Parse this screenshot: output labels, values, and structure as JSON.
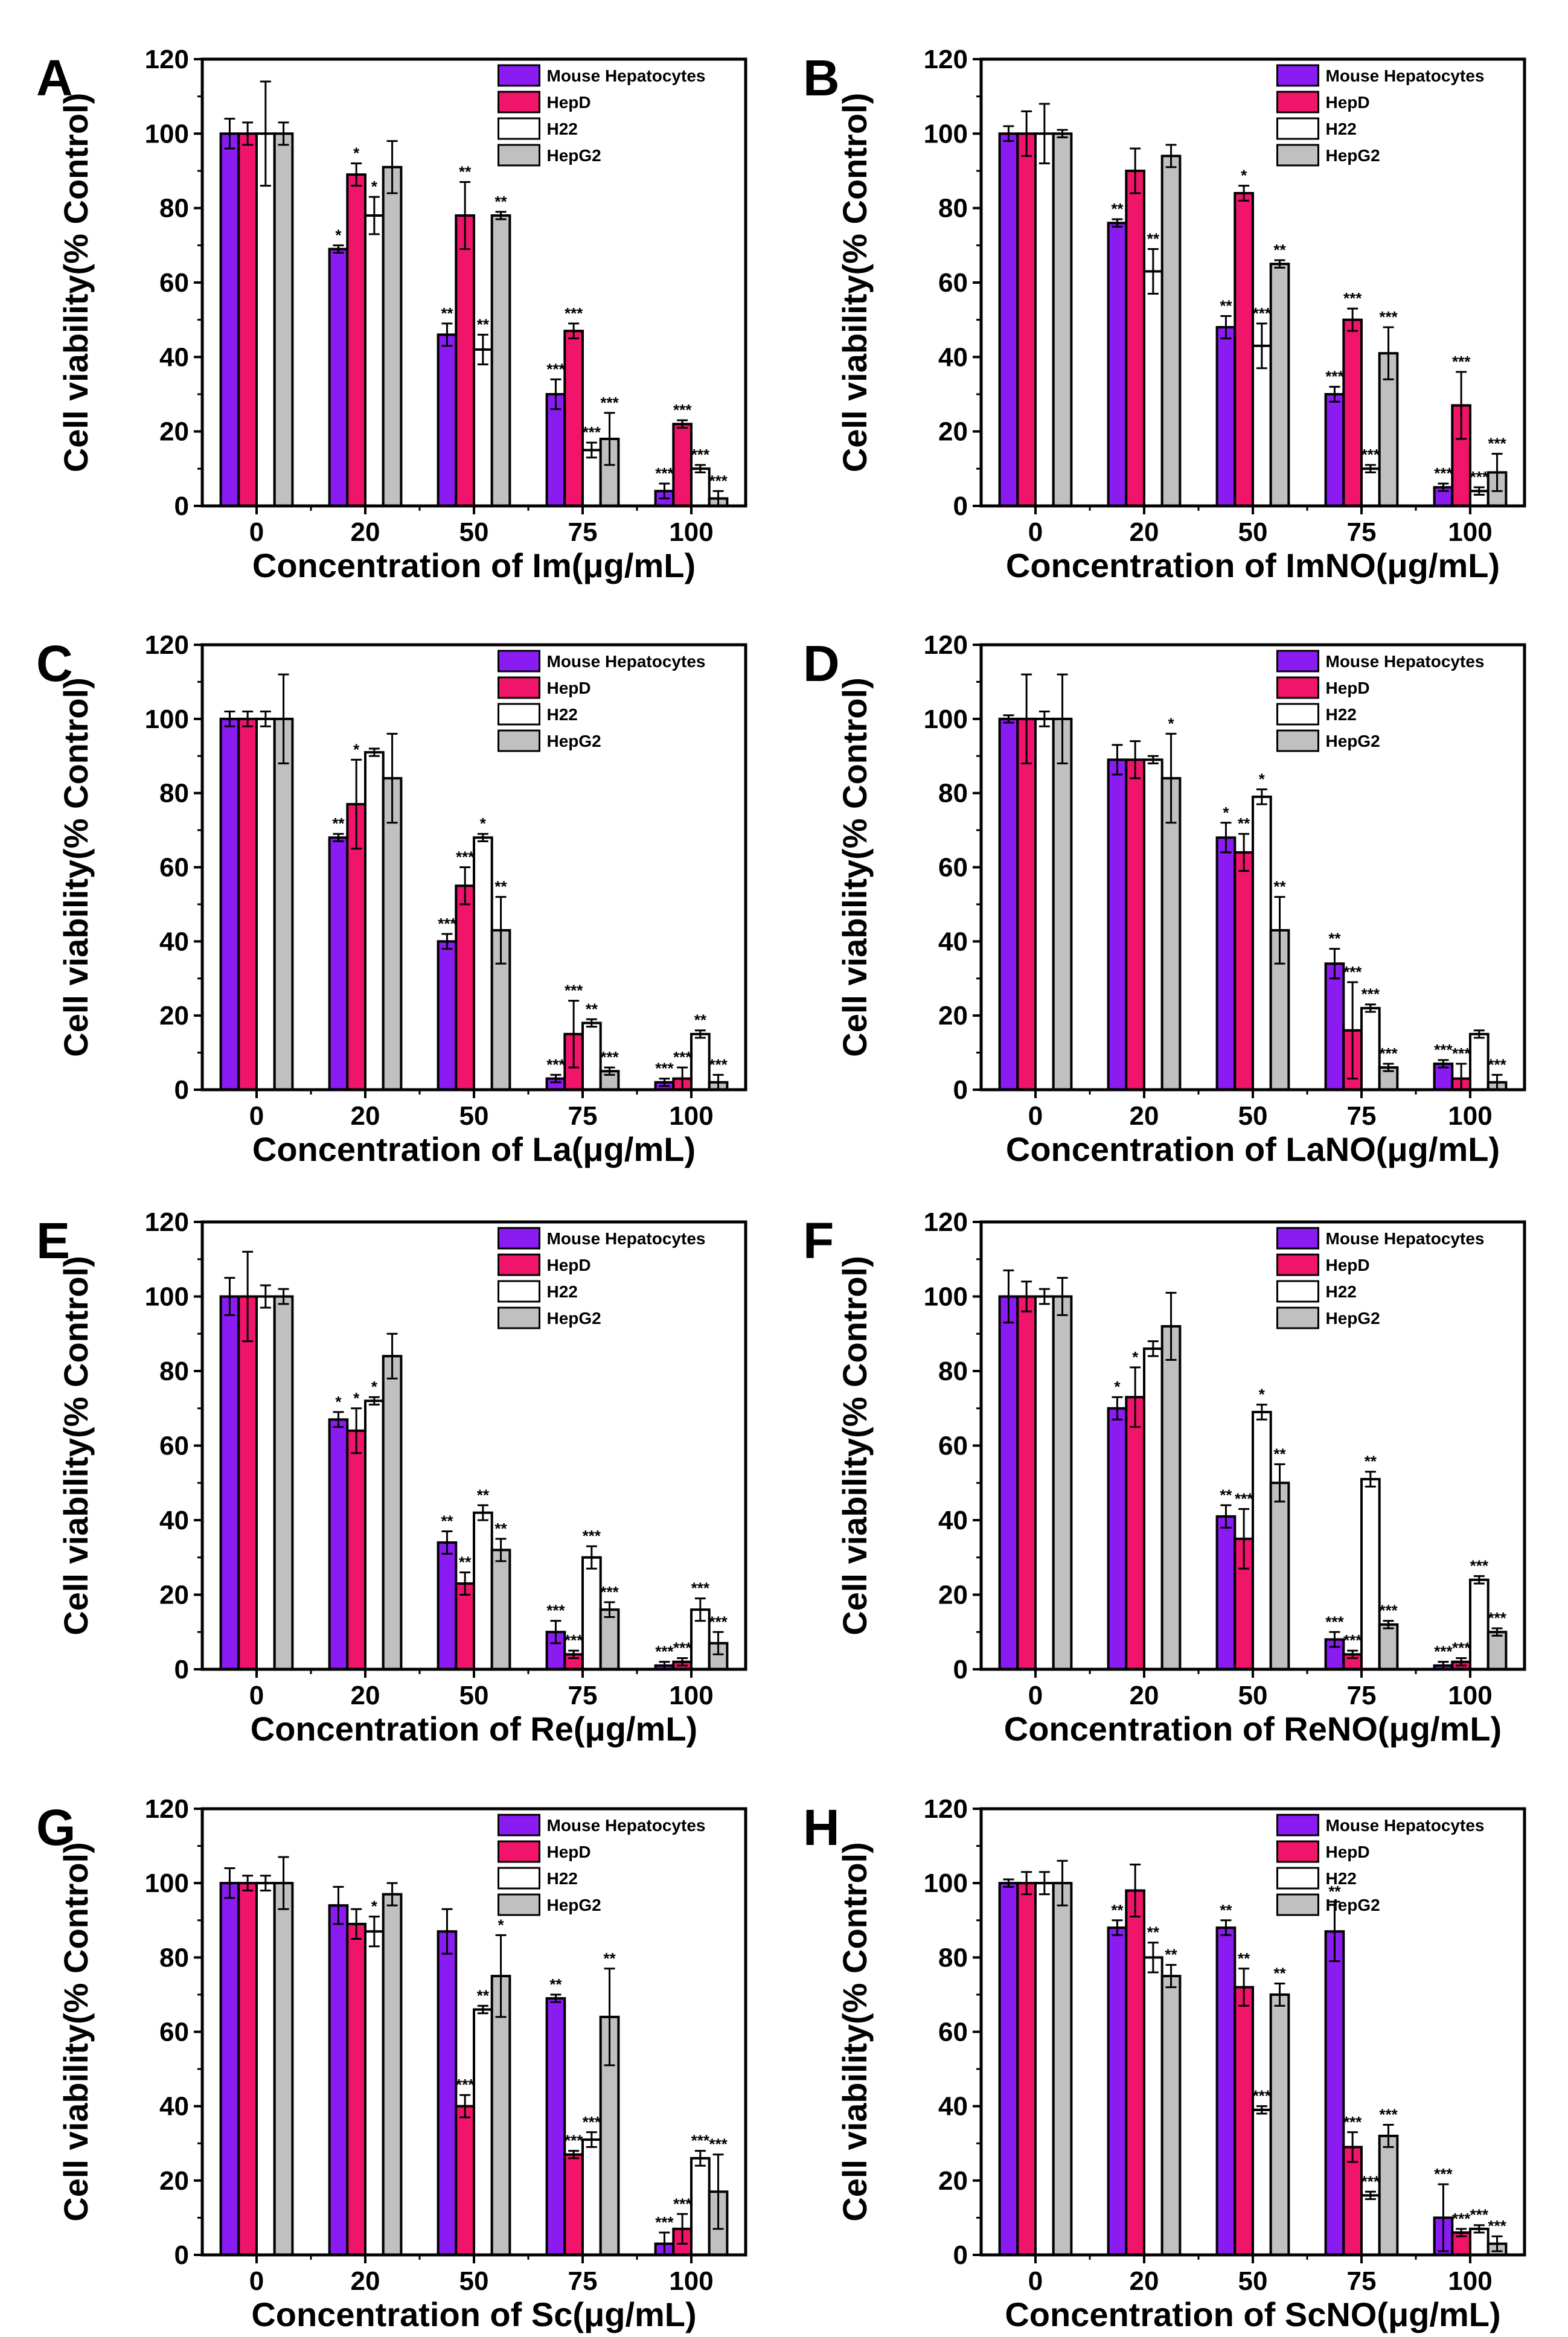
{
  "colors": {
    "Mouse Hepatocytes": "#8a1cf2",
    "HepD": "#f0156b",
    "H22": "#ffffff",
    "HepG2": "#c0c0c0"
  },
  "chart_data": [
    {
      "type": "bar",
      "panel": "A",
      "xlabel": "Concentration of Im(μg/mL)",
      "ylabel": "Cell  viability(% Control)",
      "ylim": [
        0,
        120
      ],
      "yticks": [
        0,
        20,
        40,
        60,
        80,
        100,
        120
      ],
      "legend": "top-right",
      "categories": [
        "0",
        "20",
        "50",
        "75",
        "100"
      ],
      "series": [
        {
          "name": "Mouse Hepatocytes",
          "values": [
            100,
            69,
            46,
            30,
            4
          ],
          "errors": [
            4,
            1,
            3,
            4,
            2
          ],
          "sig": [
            "",
            "*",
            "**",
            "***",
            "***"
          ]
        },
        {
          "name": "HepD",
          "values": [
            100,
            89,
            78,
            47,
            22
          ],
          "errors": [
            3,
            3,
            9,
            2,
            1
          ],
          "sig": [
            "",
            "*",
            "**",
            "***",
            "***"
          ]
        },
        {
          "name": "H22",
          "values": [
            100,
            78,
            42,
            15,
            10
          ],
          "errors": [
            14,
            5,
            4,
            2,
            1
          ],
          "sig": [
            "",
            "*",
            "**",
            "***",
            "***"
          ]
        },
        {
          "name": "HepG2",
          "values": [
            100,
            91,
            78,
            18,
            2
          ],
          "errors": [
            3,
            7,
            1,
            7,
            2
          ],
          "sig": [
            "",
            "",
            "**",
            "***",
            "***"
          ]
        }
      ]
    },
    {
      "type": "bar",
      "panel": "B",
      "xlabel": "Concentration of ImNO(μg/mL)",
      "ylabel": "Cell  viability(% Control)",
      "ylim": [
        0,
        120
      ],
      "yticks": [
        0,
        20,
        40,
        60,
        80,
        100,
        120
      ],
      "legend": "top-right",
      "categories": [
        "0",
        "20",
        "50",
        "75",
        "100"
      ],
      "series": [
        {
          "name": "Mouse Hepatocytes",
          "values": [
            100,
            76,
            48,
            30,
            5
          ],
          "errors": [
            2,
            1,
            3,
            2,
            1
          ],
          "sig": [
            "",
            "**",
            "**",
            "***",
            "***"
          ]
        },
        {
          "name": "HepD",
          "values": [
            100,
            90,
            84,
            50,
            27
          ],
          "errors": [
            6,
            6,
            2,
            3,
            9
          ],
          "sig": [
            "",
            "",
            "*",
            "***",
            "***"
          ]
        },
        {
          "name": "H22",
          "values": [
            100,
            63,
            43,
            10,
            4
          ],
          "errors": [
            8,
            6,
            6,
            1,
            1
          ],
          "sig": [
            "",
            "**",
            "***",
            "***",
            "***"
          ]
        },
        {
          "name": "HepG2",
          "values": [
            100,
            94,
            65,
            41,
            9
          ],
          "errors": [
            1,
            3,
            1,
            7,
            5
          ],
          "sig": [
            "",
            "",
            "**",
            "***",
            "***"
          ]
        }
      ]
    },
    {
      "type": "bar",
      "panel": "C",
      "xlabel": "Concentration of La(μg/mL)",
      "ylabel": "Cell  viability(% Control)",
      "ylim": [
        0,
        120
      ],
      "yticks": [
        0,
        20,
        40,
        60,
        80,
        100,
        120
      ],
      "legend": "top-right",
      "categories": [
        "0",
        "20",
        "50",
        "75",
        "100"
      ],
      "series": [
        {
          "name": "Mouse Hepatocytes",
          "values": [
            100,
            68,
            40,
            3,
            2
          ],
          "errors": [
            2,
            1,
            2,
            1,
            1
          ],
          "sig": [
            "",
            "**",
            "***",
            "***",
            "***"
          ]
        },
        {
          "name": "HepD",
          "values": [
            100,
            77,
            55,
            15,
            3
          ],
          "errors": [
            2,
            12,
            5,
            9,
            3
          ],
          "sig": [
            "",
            "*",
            "***",
            "***",
            "***"
          ]
        },
        {
          "name": "H22",
          "values": [
            100,
            91,
            68,
            18,
            15
          ],
          "errors": [
            2,
            1,
            1,
            1,
            1
          ],
          "sig": [
            "",
            "",
            "*",
            "**",
            "**"
          ]
        },
        {
          "name": "HepG2",
          "values": [
            100,
            84,
            43,
            5,
            2
          ],
          "errors": [
            12,
            12,
            9,
            1,
            2
          ],
          "sig": [
            "",
            "",
            "**",
            "***",
            "***"
          ]
        }
      ]
    },
    {
      "type": "bar",
      "panel": "D",
      "xlabel": "Concentration of LaNO(μg/mL)",
      "ylabel": "Cell  viability(% Control)",
      "ylim": [
        0,
        120
      ],
      "yticks": [
        0,
        20,
        40,
        60,
        80,
        100,
        120
      ],
      "legend": "top-right",
      "categories": [
        "0",
        "20",
        "50",
        "75",
        "100"
      ],
      "series": [
        {
          "name": "Mouse Hepatocytes",
          "values": [
            100,
            89,
            68,
            34,
            7
          ],
          "errors": [
            1,
            4,
            4,
            4,
            1
          ],
          "sig": [
            "",
            "",
            "*",
            "**",
            "***"
          ]
        },
        {
          "name": "HepD",
          "values": [
            100,
            89,
            64,
            16,
            3
          ],
          "errors": [
            12,
            5,
            5,
            13,
            4
          ],
          "sig": [
            "",
            "",
            "**",
            "***",
            "***"
          ]
        },
        {
          "name": "H22",
          "values": [
            100,
            89,
            79,
            22,
            15
          ],
          "errors": [
            2,
            1,
            2,
            1,
            1
          ],
          "sig": [
            "",
            "",
            "*",
            "***",
            ""
          ]
        },
        {
          "name": "HepG2",
          "values": [
            100,
            84,
            43,
            6,
            2
          ],
          "errors": [
            12,
            12,
            9,
            1,
            2
          ],
          "sig": [
            "",
            "*",
            "**",
            "***",
            "***"
          ]
        }
      ]
    },
    {
      "type": "bar",
      "panel": "E",
      "xlabel": "Concentration of Re(μg/mL)",
      "ylabel": "Cell  viability(% Control)",
      "ylim": [
        0,
        120
      ],
      "yticks": [
        0,
        20,
        40,
        60,
        80,
        100,
        120
      ],
      "legend": "top-right",
      "categories": [
        "0",
        "20",
        "50",
        "75",
        "100"
      ],
      "series": [
        {
          "name": "Mouse Hepatocytes",
          "values": [
            100,
            67,
            34,
            10,
            1
          ],
          "errors": [
            5,
            2,
            3,
            3,
            1
          ],
          "sig": [
            "",
            "*",
            "**",
            "***",
            "***"
          ]
        },
        {
          "name": "HepD",
          "values": [
            100,
            64,
            23,
            4,
            2
          ],
          "errors": [
            12,
            6,
            3,
            1,
            1
          ],
          "sig": [
            "",
            "*",
            "**",
            "***",
            "***"
          ]
        },
        {
          "name": "H22",
          "values": [
            100,
            72,
            42,
            30,
            16
          ],
          "errors": [
            3,
            1,
            2,
            3,
            3
          ],
          "sig": [
            "",
            "*",
            "**",
            "***",
            "***"
          ]
        },
        {
          "name": "HepG2",
          "values": [
            100,
            84,
            32,
            16,
            7
          ],
          "errors": [
            2,
            6,
            3,
            2,
            3
          ],
          "sig": [
            "",
            "",
            "**",
            "***",
            "***"
          ]
        }
      ]
    },
    {
      "type": "bar",
      "panel": "F",
      "xlabel": "Concentration of ReNO(μg/mL)",
      "ylabel": "Cell  viability(% Control)",
      "ylim": [
        0,
        120
      ],
      "yticks": [
        0,
        20,
        40,
        60,
        80,
        100,
        120
      ],
      "legend": "top-right",
      "categories": [
        "0",
        "20",
        "50",
        "75",
        "100"
      ],
      "series": [
        {
          "name": "Mouse Hepatocytes",
          "values": [
            100,
            70,
            41,
            8,
            1
          ],
          "errors": [
            7,
            3,
            3,
            2,
            1
          ],
          "sig": [
            "",
            "*",
            "**",
            "***",
            "***"
          ]
        },
        {
          "name": "HepD",
          "values": [
            100,
            73,
            35,
            4,
            2
          ],
          "errors": [
            4,
            8,
            8,
            1,
            1
          ],
          "sig": [
            "",
            "*",
            "***",
            "***",
            "***"
          ]
        },
        {
          "name": "H22",
          "values": [
            100,
            86,
            69,
            51,
            24
          ],
          "errors": [
            2,
            2,
            2,
            2,
            1
          ],
          "sig": [
            "",
            "",
            "*",
            "**",
            "***"
          ]
        },
        {
          "name": "HepG2",
          "values": [
            100,
            92,
            50,
            12,
            10
          ],
          "errors": [
            5,
            9,
            5,
            1,
            1
          ],
          "sig": [
            "",
            "",
            "**",
            "***",
            "***"
          ]
        }
      ]
    },
    {
      "type": "bar",
      "panel": "G",
      "xlabel": "Concentration of Sc(μg/mL)",
      "ylabel": "Cell  viability(% Control)",
      "ylim": [
        0,
        120
      ],
      "yticks": [
        0,
        20,
        40,
        60,
        80,
        100,
        120
      ],
      "legend": "top-right",
      "categories": [
        "0",
        "20",
        "50",
        "75",
        "100"
      ],
      "series": [
        {
          "name": "Mouse Hepatocytes",
          "values": [
            100,
            94,
            87,
            69,
            3
          ],
          "errors": [
            4,
            5,
            6,
            1,
            3
          ],
          "sig": [
            "",
            "",
            "",
            "**",
            "***"
          ]
        },
        {
          "name": "HepD",
          "values": [
            100,
            89,
            40,
            27,
            7
          ],
          "errors": [
            2,
            4,
            3,
            1,
            4
          ],
          "sig": [
            "",
            "",
            "***",
            "***",
            "***"
          ]
        },
        {
          "name": "H22",
          "values": [
            100,
            87,
            66,
            31,
            26
          ],
          "errors": [
            2,
            4,
            1,
            2,
            2
          ],
          "sig": [
            "",
            "*",
            "**",
            "***",
            "***"
          ]
        },
        {
          "name": "HepG2",
          "values": [
            100,
            97,
            75,
            64,
            17
          ],
          "errors": [
            7,
            3,
            11,
            13,
            10
          ],
          "sig": [
            "",
            "",
            "*",
            "**",
            "***"
          ]
        }
      ]
    },
    {
      "type": "bar",
      "panel": "H",
      "xlabel": "Concentration of ScNO(μg/mL)",
      "ylabel": "Cell  viability(% Control)",
      "ylim": [
        0,
        120
      ],
      "yticks": [
        0,
        20,
        40,
        60,
        80,
        100,
        120
      ],
      "legend": "top-right",
      "categories": [
        "0",
        "20",
        "50",
        "75",
        "100"
      ],
      "series": [
        {
          "name": "Mouse Hepatocytes",
          "values": [
            100,
            88,
            88,
            87,
            10
          ],
          "errors": [
            1,
            2,
            2,
            8,
            9
          ],
          "sig": [
            "",
            "**",
            "**",
            "**",
            "***"
          ]
        },
        {
          "name": "HepD",
          "values": [
            100,
            98,
            72,
            29,
            6
          ],
          "errors": [
            3,
            7,
            5,
            4,
            1
          ],
          "sig": [
            "",
            "",
            "**",
            "***",
            "***"
          ]
        },
        {
          "name": "H22",
          "values": [
            100,
            80,
            39,
            16,
            7
          ],
          "errors": [
            3,
            4,
            1,
            1,
            1
          ],
          "sig": [
            "",
            "**",
            "***",
            "***",
            "***"
          ]
        },
        {
          "name": "HepG2",
          "values": [
            100,
            75,
            70,
            32,
            3
          ],
          "errors": [
            6,
            3,
            3,
            3,
            2
          ],
          "sig": [
            "",
            "**",
            "**",
            "***",
            "***"
          ]
        }
      ]
    }
  ]
}
